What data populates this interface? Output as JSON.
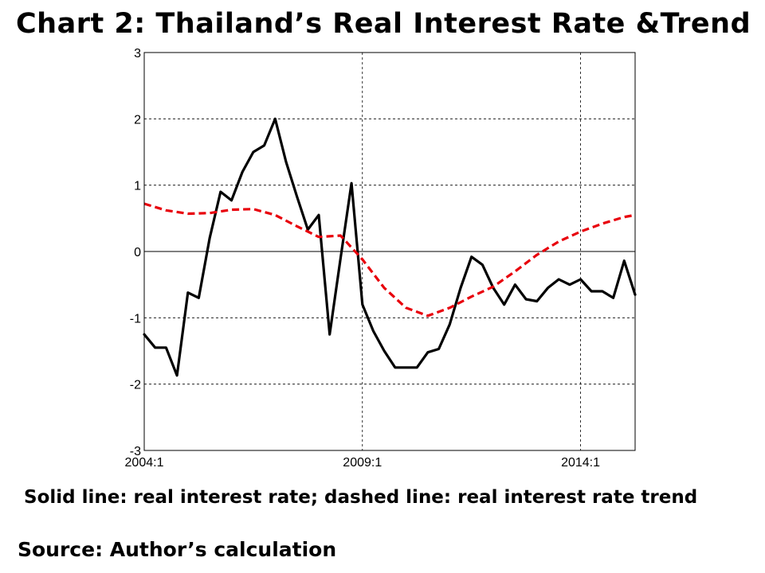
{
  "title": "Chart 2: Thailand’s Real Interest Rate &Trend",
  "note": "Solid line: real interest rate; dashed line: real interest rate trend",
  "source": "Source:  Author’s calculation",
  "chart_data": {
    "type": "line",
    "x_ticks": [
      "2004:1",
      "2009:1",
      "2014:1"
    ],
    "x_tick_positions": [
      2004.0,
      2009.0,
      2014.0
    ],
    "xlim": [
      2004.0,
      2015.25
    ],
    "ylim": [
      -3,
      3
    ],
    "y_ticks": [
      "3",
      "2",
      "1",
      "0",
      "-1",
      "-2",
      "-3"
    ],
    "y_tick_values": [
      3,
      2,
      1,
      0,
      -1,
      -2,
      -3
    ],
    "grid": true,
    "series": [
      {
        "style": "solid",
        "color": "#000000",
        "x": [
          2004.0,
          2004.25,
          2004.5,
          2004.75,
          2005.0,
          2005.25,
          2005.5,
          2005.75,
          2006.0,
          2006.25,
          2006.5,
          2006.75,
          2007.0,
          2007.25,
          2007.5,
          2007.75,
          2008.0,
          2008.25,
          2008.5,
          2008.75,
          2009.0,
          2009.25,
          2009.5,
          2009.75,
          2010.0,
          2010.25,
          2010.5,
          2010.75,
          2011.0,
          2011.25,
          2011.5,
          2011.75,
          2012.0,
          2012.25,
          2012.5,
          2012.75,
          2013.0,
          2013.25,
          2013.5,
          2013.75,
          2014.0,
          2014.25,
          2014.5,
          2014.75,
          2015.0,
          2015.25
        ],
        "y": [
          -1.25,
          -1.45,
          -1.45,
          -1.87,
          -0.62,
          -0.7,
          0.2,
          0.9,
          0.77,
          1.2,
          1.5,
          1.6,
          2.0,
          1.35,
          0.83,
          0.33,
          0.55,
          -1.25,
          -0.1,
          1.03,
          -0.8,
          -1.2,
          -1.5,
          -1.75,
          -1.75,
          -1.75,
          -1.52,
          -1.47,
          -1.1,
          -0.55,
          -0.08,
          -0.2,
          -0.55,
          -0.8,
          -0.5,
          -0.72,
          -0.75,
          -0.55,
          -0.42,
          -0.5,
          -0.42,
          -0.6,
          -0.6,
          -0.7,
          -0.14,
          -0.65
        ]
      },
      {
        "style": "dashed",
        "color": "#e8000b",
        "x": [
          2004.0,
          2004.5,
          2005.0,
          2005.5,
          2006.0,
          2006.5,
          2007.0,
          2007.5,
          2008.0,
          2008.5,
          2009.0,
          2009.5,
          2010.0,
          2010.5,
          2011.0,
          2011.5,
          2012.0,
          2012.5,
          2013.0,
          2013.5,
          2014.0,
          2014.5,
          2015.0,
          2015.25
        ],
        "y": [
          0.72,
          0.62,
          0.57,
          0.58,
          0.63,
          0.64,
          0.55,
          0.38,
          0.22,
          0.24,
          -0.12,
          -0.55,
          -0.85,
          -0.97,
          -0.85,
          -0.68,
          -0.53,
          -0.3,
          -0.05,
          0.15,
          0.3,
          0.42,
          0.52,
          0.55
        ]
      }
    ]
  }
}
